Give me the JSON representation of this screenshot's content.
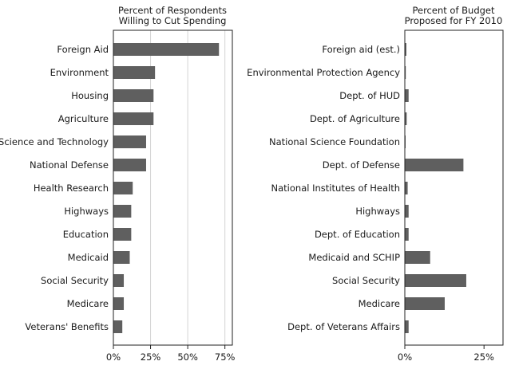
{
  "chart_data": [
    {
      "type": "bar",
      "orientation": "horizontal",
      "title": "Percent of Respondents Willing to Cut Spending",
      "title_lines": [
        "Percent of Respondents",
        "Willing to Cut Spending"
      ],
      "categories": [
        "Foreign Aid",
        "Environment",
        "Housing",
        "Agriculture",
        "Science and Technology",
        "National Defense",
        "Health Research",
        "Highways",
        "Education",
        "Medicaid",
        "Social Security",
        "Medicare",
        "Veterans' Benefits"
      ],
      "values": [
        71,
        28,
        27,
        27,
        22,
        22,
        13,
        12,
        12,
        11,
        7,
        7,
        6
      ],
      "xlim": [
        0,
        80
      ],
      "ticks": [
        0,
        25,
        50,
        75
      ],
      "tick_labels": [
        "0%",
        "25%",
        "50%",
        "75%"
      ],
      "grid": true,
      "bar_color": "#5f5f5f"
    },
    {
      "type": "bar",
      "orientation": "horizontal",
      "title": "Percent of Budget Proposed for FY 2010",
      "title_lines": [
        "Percent of Budget",
        "Proposed for FY 2010"
      ],
      "categories": [
        "Foreign aid (est.)",
        "Environmental Protection Agency",
        "Dept. of HUD",
        "Dept. of Agriculture",
        "National Science Foundation",
        "Dept. of Defense",
        "National Institutes of Health",
        "Highways",
        "Dept. of Education",
        "Medicaid and SCHIP",
        "Social Security",
        "Medicare",
        "Dept. of Veterans Affairs"
      ],
      "values": [
        0.5,
        0.3,
        1.2,
        0.6,
        0.2,
        18.5,
        0.9,
        1.2,
        1.2,
        8.0,
        19.4,
        12.6,
        1.2
      ],
      "xlim": [
        0,
        31
      ],
      "ticks": [
        0,
        25
      ],
      "tick_labels": [
        "0%",
        "25%"
      ],
      "grid": false,
      "bar_color": "#5f5f5f"
    }
  ]
}
